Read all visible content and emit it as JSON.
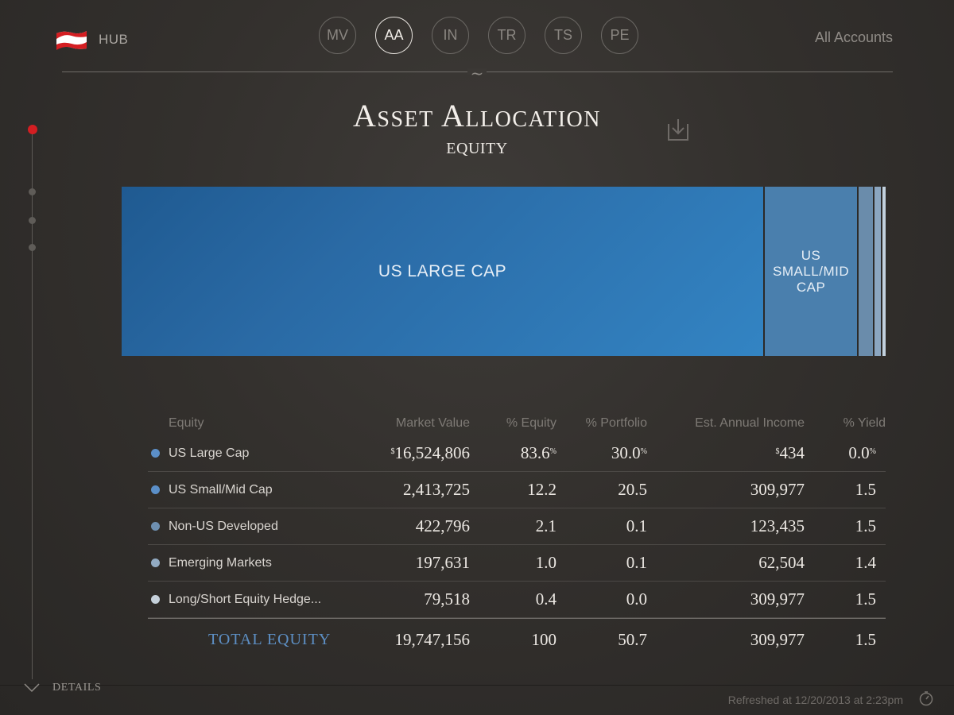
{
  "header": {
    "hub_label": "HUB",
    "nav": [
      "MV",
      "AA",
      "IN",
      "TR",
      "TS",
      "PE"
    ],
    "active_nav": "AA",
    "all_accounts": "All Accounts",
    "divider_glyph": "~"
  },
  "page": {
    "title": "Asset Allocation",
    "subtitle": "EQUITY"
  },
  "allocation_bar": [
    {
      "label": "US LARGE CAP",
      "percent": 83.6,
      "color": "#2a6aa5"
    },
    {
      "label": "US SMALL/MID CAP",
      "percent": 12.2,
      "color": "#4a7fad"
    },
    {
      "label": "",
      "percent": 2.1,
      "color": "#6a8cab"
    },
    {
      "label": "",
      "percent": 1.0,
      "color": "#8ba6c0"
    },
    {
      "label": "",
      "percent": 0.4,
      "color": "#c2d1de"
    }
  ],
  "table": {
    "headers": {
      "name": "Equity",
      "market_value": "Market Value",
      "pct_equity": "% Equity",
      "pct_portfolio": "% Portfolio",
      "income": "Est. Annual Income",
      "yield": "% Yield"
    },
    "rows": [
      {
        "name": "US Large Cap",
        "dot": "#5b8fc8",
        "mv_prefix": "$",
        "market_value": "16,524,806",
        "pct_equity": "83.6",
        "pct_equity_suffix": "%",
        "pct_portfolio": "30.0",
        "pct_portfolio_suffix": "%",
        "income_prefix": "$",
        "income": "434",
        "yield": "0.0",
        "yield_suffix": "%"
      },
      {
        "name": "US Small/Mid Cap",
        "dot": "#5b8fc8",
        "mv_prefix": "",
        "market_value": "2,413,725",
        "pct_equity": "12.2",
        "pct_equity_suffix": "",
        "pct_portfolio": "20.5",
        "pct_portfolio_suffix": "",
        "income_prefix": "",
        "income": "309,977",
        "yield": "1.5",
        "yield_suffix": ""
      },
      {
        "name": "Non-US Developed",
        "dot": "#6e8fb0",
        "mv_prefix": "",
        "market_value": "422,796",
        "pct_equity": "2.1",
        "pct_equity_suffix": "",
        "pct_portfolio": "0.1",
        "pct_portfolio_suffix": "",
        "income_prefix": "",
        "income": "123,435",
        "yield": "1.5",
        "yield_suffix": ""
      },
      {
        "name": "Emerging Markets",
        "dot": "#93abc3",
        "mv_prefix": "",
        "market_value": "197,631",
        "pct_equity": "1.0",
        "pct_equity_suffix": "",
        "pct_portfolio": "0.1",
        "pct_portfolio_suffix": "",
        "income_prefix": "",
        "income": "62,504",
        "yield": "1.4",
        "yield_suffix": ""
      },
      {
        "name": "Long/Short Equity Hedge...",
        "dot": "#c5d0da",
        "mv_prefix": "",
        "market_value": "79,518",
        "pct_equity": "0.4",
        "pct_equity_suffix": "",
        "pct_portfolio": "0.0",
        "pct_portfolio_suffix": "",
        "income_prefix": "",
        "income": "309,977",
        "yield": "1.5",
        "yield_suffix": ""
      }
    ],
    "total": {
      "label": "TOTAL EQUITY",
      "market_value": "19,747,156",
      "pct_equity": "100",
      "pct_portfolio": "50.7",
      "income": "309,977",
      "yield": "1.5"
    }
  },
  "footer": {
    "details_label": "DETAILS",
    "refreshed": "Refreshed at 12/20/2013 at 2:23pm"
  },
  "icons": {
    "flag": "flag-icon",
    "download": "download-icon",
    "chevron": "chevron-down-icon",
    "refresh": "refresh-timer-icon"
  }
}
